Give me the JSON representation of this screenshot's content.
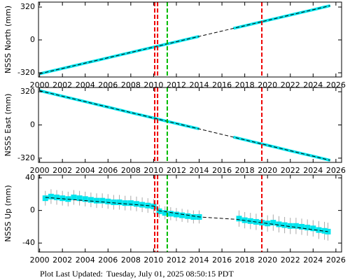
{
  "chart_data": [
    {
      "type": "line",
      "ylabel": "NSSS North (mm)",
      "xlim": [
        1999.9,
        2026.5
      ],
      "ylim": [
        -361,
        368
      ],
      "xticks": [
        2000,
        2002,
        2004,
        2006,
        2008,
        2010,
        2012,
        2014,
        2016,
        2018,
        2020,
        2022,
        2024,
        2026
      ],
      "yticks": [
        -320,
        0,
        320
      ],
      "x": [
        2000,
        2001,
        2002,
        2003,
        2004,
        2005,
        2006,
        2007,
        2008,
        2009,
        2010,
        2011,
        2012,
        2013,
        2014,
        2015,
        2016,
        2017,
        2018,
        2019,
        2020,
        2021,
        2022,
        2023,
        2024,
        2025,
        2025.5
      ],
      "series": [
        {
          "color": "#00e5ee",
          "style": "solid",
          "values": [
            -330,
            -304,
            -278,
            -252,
            -226,
            -200,
            -174,
            -148,
            -122,
            -96,
            -70,
            -44,
            -18,
            8,
            34,
            null,
            null,
            112,
            138,
            164,
            190,
            216,
            242,
            268,
            294,
            320,
            333
          ]
        },
        {
          "color": "#000000",
          "style": "dashed",
          "x": [
            2000,
            2025.5
          ],
          "values": [
            -330,
            333
          ]
        }
      ]
    },
    {
      "type": "line",
      "ylabel": "NSSS East (mm)",
      "xlim": [
        1999.9,
        2026.5
      ],
      "ylim": [
        -361,
        361
      ],
      "xticks": [
        2000,
        2002,
        2004,
        2006,
        2008,
        2010,
        2012,
        2014,
        2016,
        2018,
        2020,
        2022,
        2024,
        2026
      ],
      "yticks": [
        -320,
        0,
        320
      ],
      "x": [
        2000,
        2001,
        2002,
        2003,
        2004,
        2005,
        2006,
        2007,
        2008,
        2009,
        2010,
        2011,
        2012,
        2013,
        2014,
        2015,
        2016,
        2017,
        2018,
        2019,
        2020,
        2021,
        2022,
        2023,
        2024,
        2025,
        2025.5
      ],
      "series": [
        {
          "color": "#00e5ee",
          "style": "solid",
          "values": [
            330,
            304,
            277,
            251,
            225,
            198,
            172,
            146,
            119,
            93,
            67,
            40,
            14,
            -12,
            -38,
            null,
            null,
            -117,
            -143,
            -170,
            -196,
            -222,
            -249,
            -275,
            -301,
            -328,
            -341
          ]
        },
        {
          "color": "#000000",
          "style": "dashed",
          "x": [
            2000,
            2025.5
          ],
          "values": [
            330,
            -341
          ]
        }
      ]
    },
    {
      "type": "line",
      "ylabel": "NSSS Up (mm)",
      "xlim": [
        1999.9,
        2026.5
      ],
      "ylim": [
        -51,
        43.5
      ],
      "xticks": [
        2000,
        2002,
        2004,
        2006,
        2008,
        2010,
        2012,
        2014,
        2016,
        2018,
        2020,
        2022,
        2024,
        2026
      ],
      "yticks": [
        -40,
        0,
        40
      ],
      "x": [
        2000.5,
        2001,
        2001.5,
        2002,
        2002.5,
        2003,
        2003.5,
        2004,
        2004.5,
        2005,
        2005.5,
        2006,
        2006.5,
        2007,
        2007.5,
        2008,
        2008.5,
        2009,
        2009.5,
        2010,
        2010.5,
        2011,
        2011.5,
        2012,
        2012.5,
        2013,
        2013.5,
        2014,
        2017.5,
        2018,
        2018.5,
        2019,
        2019.5,
        2020,
        2020.5,
        2021,
        2021.5,
        2022,
        2022.5,
        2023,
        2023.5,
        2024,
        2024.5,
        2025,
        2025.3
      ],
      "series": [
        {
          "color": "#00e5ee",
          "style": "points",
          "error_color": "#aaaaaa",
          "values": [
            15,
            17,
            16,
            15,
            14,
            16,
            15,
            14,
            13,
            12,
            12,
            11,
            10,
            10,
            9,
            9,
            8,
            7,
            6,
            5,
            -1,
            -3,
            -4,
            -5,
            -6,
            -7,
            -8,
            -8,
            -10,
            -12,
            -13,
            -14,
            -15,
            -16,
            -15,
            -17,
            -18,
            -19,
            -19,
            -20,
            -21,
            -22,
            -24,
            -25,
            -26
          ],
          "errors": [
            9,
            9,
            9,
            9,
            9,
            9,
            9,
            9,
            9,
            9,
            9,
            9,
            9,
            9,
            9,
            9,
            9,
            9,
            9,
            9,
            8,
            8,
            8,
            8,
            8,
            8,
            8,
            8,
            10,
            10,
            10,
            10,
            10,
            10,
            10,
            10,
            10,
            10,
            10,
            10,
            10,
            10,
            11,
            11,
            11
          ]
        },
        {
          "color": "#000000",
          "style": "dashed",
          "x": [
            2000.5,
            2010.3,
            2010.3,
            2014,
            2017.3,
            2025.3
          ],
          "values": [
            16,
            5,
            0,
            -8,
            -11,
            -26
          ]
        }
      ]
    }
  ],
  "events": [
    {
      "x": 2010.1,
      "color": "#ee0000"
    },
    {
      "x": 2010.35,
      "color": "#ee0000"
    },
    {
      "x": 2011.2,
      "color": "#00bb00"
    },
    {
      "x": 2019.5,
      "color": "#ee0000"
    }
  ],
  "footer": {
    "label": "Plot Last Updated:",
    "date": "Tuesday, July 01, 2025 08:50:15 PDT"
  }
}
